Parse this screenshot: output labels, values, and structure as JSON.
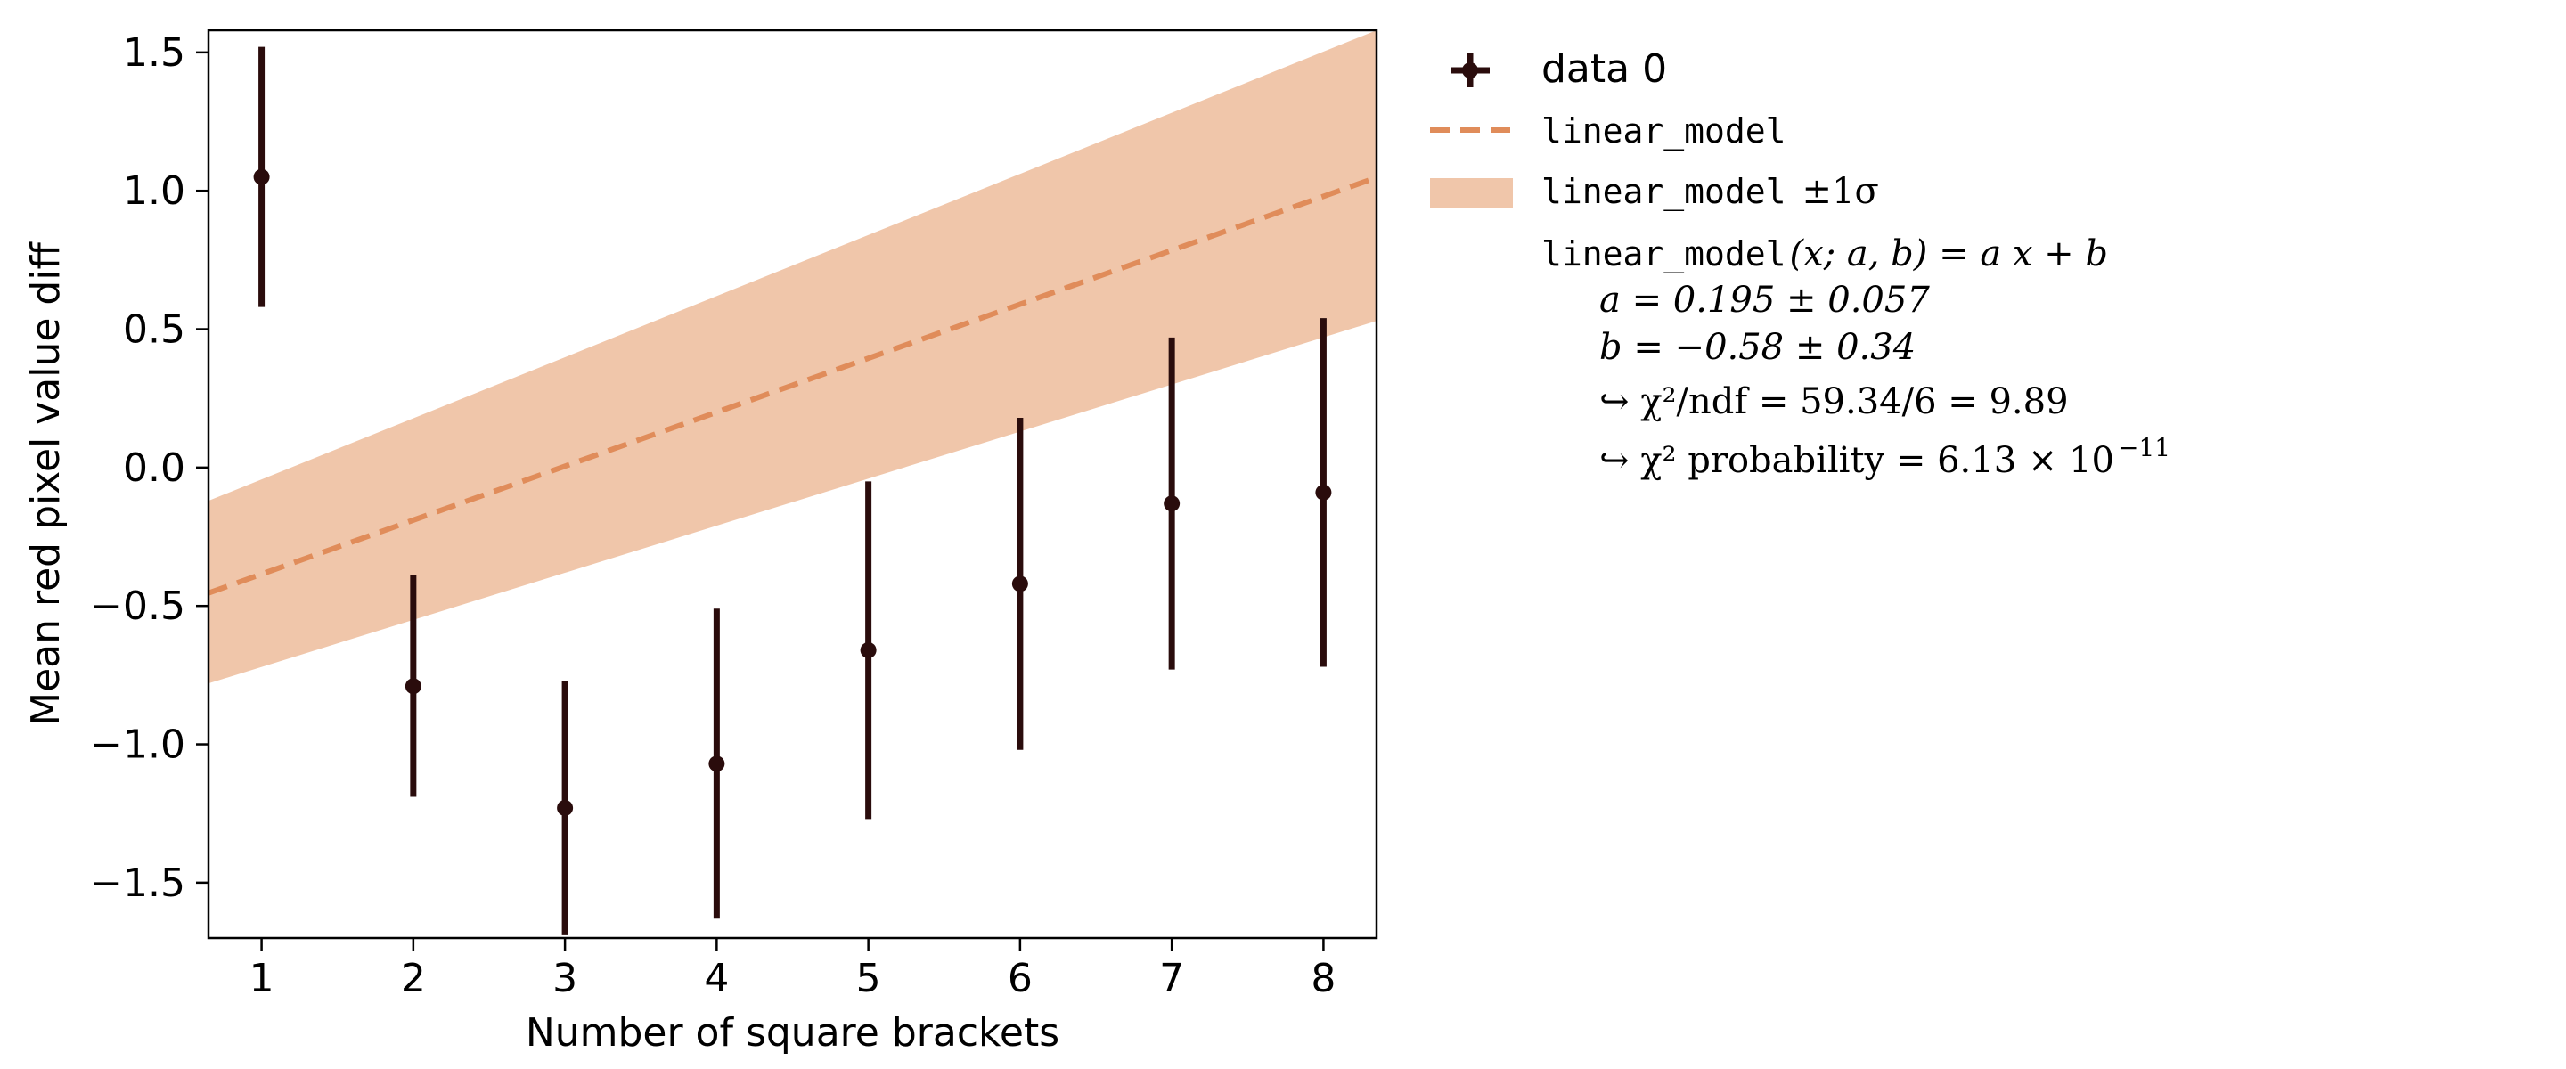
{
  "chart_data": {
    "type": "scatter",
    "xlabel": "Number of square brackets",
    "ylabel": "Mean red pixel value diff",
    "xlim": [
      0.65,
      8.35
    ],
    "ylim": [
      -1.7,
      1.58
    ],
    "x_ticks": [
      "1",
      "2",
      "3",
      "4",
      "5",
      "6",
      "7",
      "8"
    ],
    "y_ticks": [
      "1.5",
      "1.0",
      "0.5",
      "0.0",
      "−0.5",
      "−1.0",
      "−1.5"
    ],
    "y_tick_values": [
      1.5,
      1.0,
      0.5,
      0.0,
      -0.5,
      -1.0,
      -1.5
    ],
    "x_tick_values": [
      1,
      2,
      3,
      4,
      5,
      6,
      7,
      8
    ],
    "series": [
      {
        "name": "data 0",
        "x": [
          1,
          2,
          3,
          4,
          5,
          6,
          7,
          8
        ],
        "y": [
          1.05,
          -0.79,
          -1.23,
          -1.07,
          -0.66,
          -0.42,
          -0.13,
          -0.09
        ],
        "yerr": [
          0.47,
          0.4,
          0.46,
          0.56,
          0.61,
          0.6,
          0.6,
          0.63
        ],
        "color": "#2a0c0c"
      }
    ],
    "model": {
      "name": "linear_model",
      "a": 0.195,
      "b": -0.58,
      "band_low": [
        -0.78,
        0.53
      ],
      "band_high": [
        -0.12,
        1.58
      ],
      "line_color": "#e08c5a",
      "band_color": "#f0c6aa"
    },
    "legend": {
      "placement": "outside-right",
      "data_label": "data 0",
      "model_label": "linear_model",
      "band_label_mono": "linear_model",
      "band_label_math": "±1σ",
      "formula_mono": "linear_model",
      "formula_math": "(x; a, b) = a x + b",
      "param_a": "a = 0.195 ± 0.057",
      "param_b": "b = −0.58 ± 0.34",
      "chi2_ndf": "↪ χ²/ndf = 59.34/6 = 9.89",
      "chi2_prob_prefix": "↪ χ² probability = 6.13 × 10",
      "chi2_prob_exp": "−11"
    }
  }
}
